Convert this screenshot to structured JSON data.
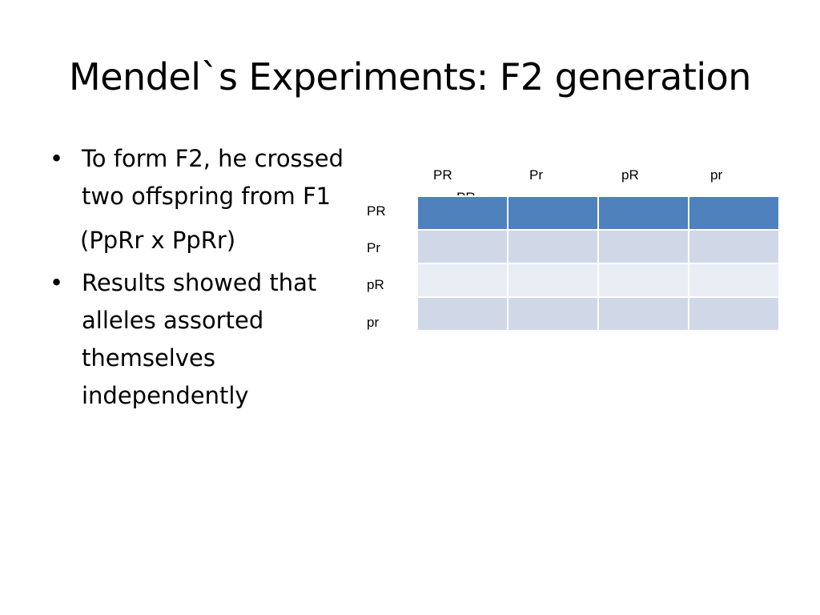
{
  "slide": {
    "title": "Mendel`s Experiments: F2 generation"
  },
  "bullets": [
    {
      "text": "To form F2, he crossed two offspring from F1"
    },
    {
      "text": "Results showed that alleles assorted themselves independently"
    }
  ],
  "cross_text": "(PpRr x PpRr)",
  "bullet_symbol": "•",
  "punnett": {
    "col_headers": [
      "PR",
      "Pr",
      "pR",
      "pr"
    ],
    "col_header_overflow": "PR",
    "row_headers": [
      "PR",
      "Pr",
      "pR",
      "pr"
    ],
    "cells": [
      [
        "",
        "",
        "",
        ""
      ],
      [
        "",
        "",
        "",
        ""
      ],
      [
        "",
        "",
        "",
        ""
      ],
      [
        "",
        "",
        "",
        ""
      ]
    ],
    "colors": {
      "header_row": "#4f81bd",
      "band_dark": "#d0d8e8",
      "band_light": "#e9edf4"
    }
  }
}
